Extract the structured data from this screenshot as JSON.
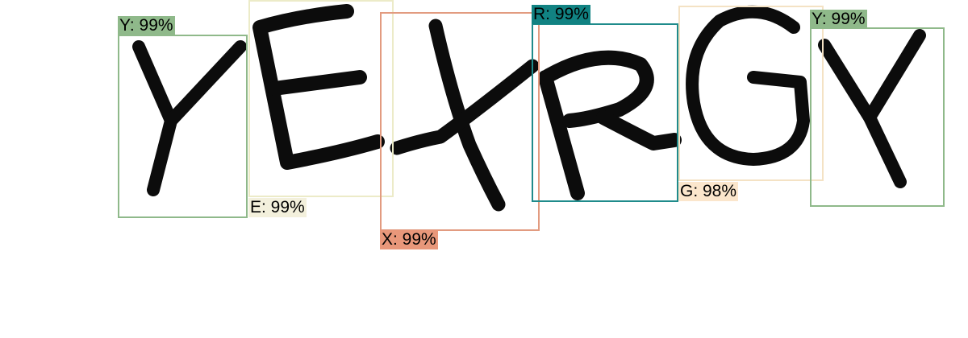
{
  "captcha": {
    "glyphs": [
      "Y",
      "E",
      "X",
      "R",
      "G",
      "Y"
    ]
  },
  "detections": [
    {
      "label": "Y: 99%",
      "color": "#8fb98a",
      "label_bg": "#8fb98a"
    },
    {
      "label": "E: 99%",
      "color": "#ecebc8",
      "label_bg": "#f3f0dc"
    },
    {
      "label": "X: 99%",
      "color": "#e29b80",
      "label_bg": "#e8977a"
    },
    {
      "label": "R: 99%",
      "color": "#1f8b8b",
      "label_bg": "#118282"
    },
    {
      "label": "G: 98%",
      "color": "#f4e2c4",
      "label_bg": "#fbe6cc"
    },
    {
      "label": "Y: 99%",
      "color": "#8fb98a",
      "label_bg": "#8fb98a"
    }
  ]
}
